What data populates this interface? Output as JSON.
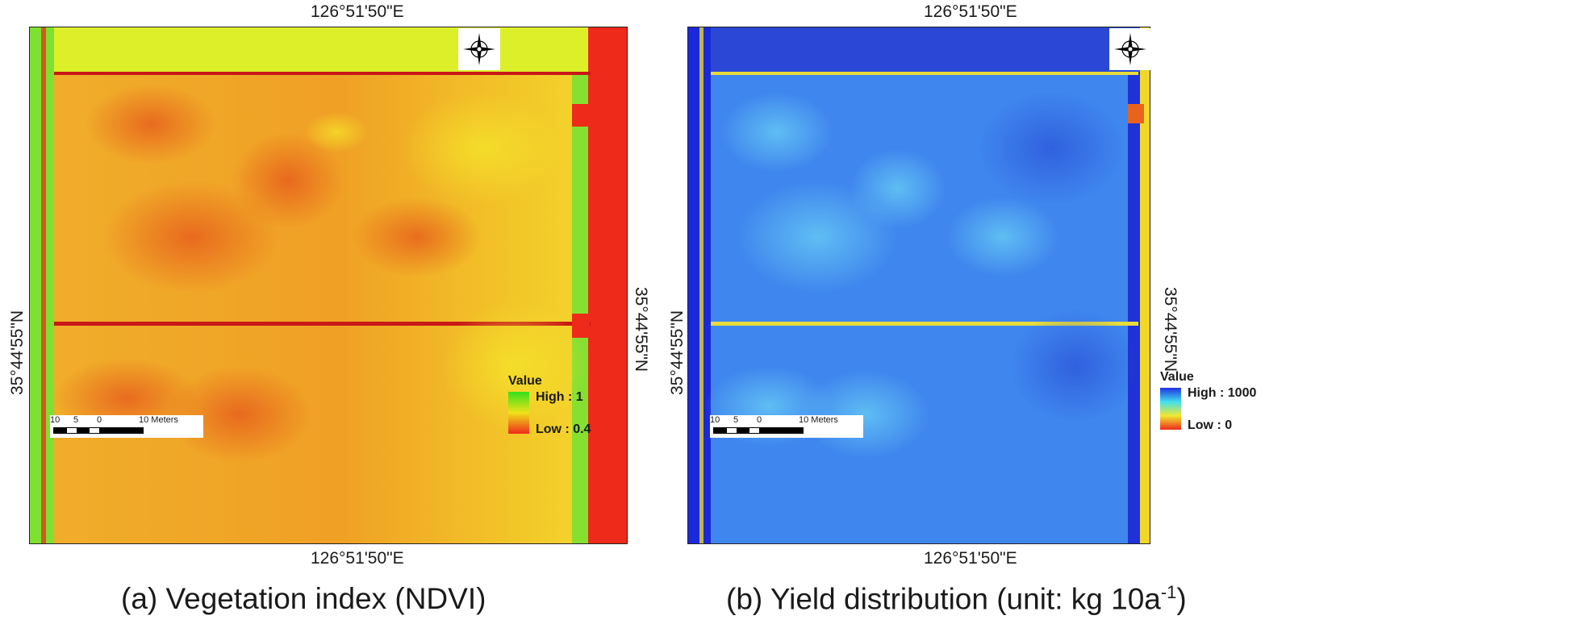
{
  "panels": [
    {
      "id": "a",
      "caption": "(a) Vegetation index (NDVI)",
      "coord_top": "126°51'50\"E",
      "coord_bottom": "126°51'50\"E",
      "coord_left": "35°44'55\"N",
      "coord_right": "35°44'55\"N",
      "legend": {
        "title": "Value",
        "high": "High : 1",
        "low": "Low : 0.4"
      },
      "scalebar": [
        "10",
        "5",
        "0",
        "10 Meters"
      ],
      "colors": {
        "field": "#f0a325",
        "field_hot": "#e8641c",
        "border_green": "#7ee030",
        "edge_red": "#ee2a1a",
        "road": "#c81818",
        "ramp": [
          "#35e01a",
          "#f0e21a",
          "#ee2a1a"
        ]
      }
    },
    {
      "id": "b",
      "caption": "(b) Yield distribution (unit: kg 10a",
      "caption_sup": "-1",
      "caption_end": ")",
      "coord_top": "126°51'50\"E",
      "coord_bottom": "126°51'50\"E",
      "coord_left": "35°44'55\"N",
      "coord_right": "35°44'55\"N",
      "legend": {
        "title": "Value",
        "high": "High : 1000",
        "low": "Low : 0"
      },
      "scalebar": [
        "10",
        "5",
        "0",
        "10 Meters"
      ],
      "colors": {
        "field": "#3f86ee",
        "field_light": "#5fc8f5",
        "border_blue": "#1a2ad8",
        "edge_yellow": "#f0d72a",
        "road": "#e8dc3a",
        "ramp": [
          "#2030e0",
          "#40e0f0",
          "#f0e830",
          "#ee2a1a"
        ]
      }
    }
  ]
}
